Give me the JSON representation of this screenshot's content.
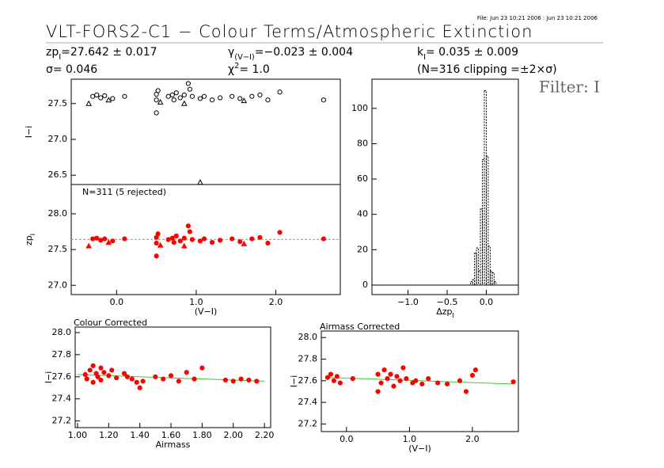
{
  "header": {
    "file": "File: Jun 23 10:21 2006 : Jun 23 10:21 2006",
    "title": "VLT-FORS2-C1 − Colour Terms/Atmospheric Extinction",
    "stats": [
      {
        "text": "zp",
        "sub": "I",
        "rest": "=27.642 ± 0.017"
      },
      {
        "text": "σ=  0.046"
      },
      {
        "text": "γ",
        "sub": "(V−I)",
        "rest": "=−0.023 ± 0.004"
      },
      {
        "text": "χ",
        "sup": "2",
        "rest": "=    1.0"
      },
      {
        "text": "k",
        "sub": "I",
        "rest": "=  0.035 ± 0.009"
      },
      {
        "text": "(N=316 clipping =±2×σ)"
      }
    ],
    "filter": "Filter: I"
  },
  "chart_data": [
    {
      "type": "scatter",
      "ylabel": "I−i",
      "xlim": [
        -0.57,
        2.81
      ],
      "ylim": [
        26.37,
        27.84
      ],
      "yticks": [
        26.5,
        {
          "value": 27,
          "label": "27.0"
        },
        27.5
      ],
      "series": [
        {
          "marker": "circle",
          "color": "#000000",
          "filled": false,
          "x": [
            -0.3,
            -0.25,
            -0.2,
            -0.15,
            -0.05,
            0.1,
            0.5,
            0.5,
            0.5,
            0.52,
            0.65,
            0.7,
            0.72,
            0.75,
            0.8,
            0.85,
            0.9,
            0.92,
            0.95,
            1.05,
            1.1,
            1.2,
            1.3,
            1.45,
            1.55,
            1.7,
            1.8,
            1.9,
            2.05,
            2.6
          ],
          "values": [
            27.6,
            27.62,
            27.58,
            27.61,
            27.57,
            27.6,
            27.37,
            27.63,
            27.55,
            27.68,
            27.6,
            27.62,
            27.55,
            27.65,
            27.58,
            27.62,
            27.78,
            27.7,
            27.6,
            27.57,
            27.6,
            27.55,
            27.58,
            27.6,
            27.57,
            27.6,
            27.62,
            27.55,
            27.66,
            27.55
          ]
        },
        {
          "marker": "triangle",
          "color": "#000000",
          "filled": false,
          "x": [
            -0.35,
            -0.1,
            0.55,
            0.85,
            1.05,
            1.6
          ],
          "values": [
            27.5,
            27.55,
            27.52,
            27.5,
            26.4,
            27.54
          ]
        }
      ]
    },
    {
      "type": "scatter",
      "annotation": "N=311 (5 rejected)",
      "ylabel": {
        "text": "zp",
        "sub": "I"
      },
      "xlabel": "(V−I)",
      "xlim": [
        -0.57,
        2.81
      ],
      "ylim": [
        26.87,
        28.41
      ],
      "xticks": [
        {
          "value": 0,
          "label": "0.0"
        },
        {
          "value": 1,
          "label": "1.0"
        },
        {
          "value": 2,
          "label": "2.0"
        }
      ],
      "yticks": [
        {
          "value": 27,
          "label": "27.0"
        },
        27.5,
        {
          "value": 28,
          "label": "28.0"
        }
      ],
      "reference_line": {
        "value": 27.642,
        "color": "#999999"
      },
      "series": [
        {
          "marker": "circle",
          "color": "#ff0000",
          "filled": true,
          "x": [
            -0.3,
            -0.25,
            -0.2,
            -0.15,
            -0.05,
            0.1,
            0.5,
            0.5,
            0.5,
            0.52,
            0.65,
            0.7,
            0.72,
            0.75,
            0.8,
            0.85,
            0.9,
            0.92,
            0.95,
            1.05,
            1.1,
            1.2,
            1.3,
            1.45,
            1.55,
            1.7,
            1.8,
            1.9,
            2.05,
            2.6
          ],
          "values": [
            27.65,
            27.66,
            27.63,
            27.65,
            27.62,
            27.65,
            27.41,
            27.67,
            27.59,
            27.72,
            27.64,
            27.66,
            27.6,
            27.69,
            27.62,
            27.66,
            27.83,
            27.75,
            27.64,
            27.62,
            27.65,
            27.6,
            27.63,
            27.65,
            27.61,
            27.65,
            27.67,
            27.59,
            27.74,
            27.65
          ]
        },
        {
          "marker": "triangle",
          "color": "#ff0000",
          "filled": true,
          "x": [
            -0.35,
            -0.1,
            0.55,
            0.85,
            1.6
          ],
          "values": [
            27.55,
            27.6,
            27.56,
            27.55,
            27.58
          ]
        }
      ]
    },
    {
      "type": "histogram",
      "xlabel": {
        "text": "Δzp",
        "sub": "I"
      },
      "xlim": [
        -1.46,
        0.41
      ],
      "ylim": [
        -5.4,
        116.5
      ],
      "xticks": [
        {
          "value": -1,
          "label": "−1.0"
        },
        {
          "value": -0.5,
          "label": "−0.5"
        },
        {
          "value": 0,
          "label": "0.0"
        }
      ],
      "yticks": [
        0,
        20,
        40,
        60,
        80,
        100
      ],
      "bins": [
        -0.2,
        -0.175,
        -0.15,
        -0.125,
        -0.1,
        -0.075,
        -0.05,
        -0.025,
        0,
        0.025,
        0.05,
        0.075,
        0.1,
        0.125,
        0.15
      ],
      "counts": [
        2,
        3,
        18,
        21,
        8,
        43,
        71,
        110,
        73,
        22,
        8,
        7,
        2,
        0
      ],
      "color": "#000000"
    },
    {
      "type": "scatter",
      "title": "Colour Corrected",
      "xlabel": "Airmass",
      "ylabel": "I−i",
      "xlim": [
        0.985,
        2.24
      ],
      "ylim": [
        27.14,
        28.05
      ],
      "xticks": [
        {
          "value": 1,
          "label": "1.00"
        },
        {
          "value": 1.2,
          "label": "1.20"
        },
        {
          "value": 1.4,
          "label": "1.40"
        },
        {
          "value": 1.6,
          "label": "1.60"
        },
        {
          "value": 1.8,
          "label": "1.80"
        },
        {
          "value": 2,
          "label": "2.00"
        },
        {
          "value": 2.2,
          "label": "2.20"
        }
      ],
      "yticks": [
        27.2,
        27.4,
        27.6,
        27.8,
        {
          "value": 28,
          "label": "28.0"
        }
      ],
      "fit": {
        "x": [
          1.0,
          2.2
        ],
        "values": [
          27.62,
          27.56
        ],
        "color": "#33cc33"
      },
      "series": [
        {
          "marker": "circle",
          "color": "#ff0000",
          "filled": true,
          "x": [
            1.05,
            1.06,
            1.08,
            1.1,
            1.1,
            1.12,
            1.13,
            1.15,
            1.15,
            1.17,
            1.2,
            1.22,
            1.25,
            1.3,
            1.32,
            1.35,
            1.38,
            1.4,
            1.42,
            1.5,
            1.55,
            1.6,
            1.65,
            1.7,
            1.75,
            1.8,
            1.95,
            2.0,
            2.05,
            2.1,
            2.15
          ],
          "values": [
            27.62,
            27.58,
            27.66,
            27.7,
            27.55,
            27.63,
            27.6,
            27.68,
            27.57,
            27.64,
            27.61,
            27.66,
            27.59,
            27.63,
            27.6,
            27.58,
            27.55,
            27.5,
            27.56,
            27.6,
            27.58,
            27.61,
            27.56,
            27.64,
            27.58,
            27.68,
            27.57,
            27.56,
            27.58,
            27.57,
            27.56
          ]
        }
      ]
    },
    {
      "type": "scatter",
      "title": "Airmass Corrected",
      "xlabel": "(V−I)",
      "ylabel": "I−i",
      "xlim": [
        -0.4,
        2.73
      ],
      "ylim": [
        27.13,
        28.06
      ],
      "xticks": [
        {
          "value": 0,
          "label": "0.0"
        },
        {
          "value": 1,
          "label": "1.0"
        },
        {
          "value": 2,
          "label": "2.0"
        }
      ],
      "yticks": [
        27.2,
        27.4,
        27.6,
        27.8,
        {
          "value": 28,
          "label": "28.0"
        }
      ],
      "fit": {
        "x": [
          -0.3,
          2.65
        ],
        "values": [
          27.63,
          27.57
        ],
        "color": "#33cc33"
      },
      "series": [
        {
          "marker": "circle",
          "color": "#ff0000",
          "filled": true,
          "x": [
            -0.3,
            -0.25,
            -0.2,
            -0.15,
            -0.1,
            0.1,
            0.5,
            0.5,
            0.55,
            0.6,
            0.65,
            0.7,
            0.75,
            0.8,
            0.85,
            0.9,
            0.95,
            1.05,
            1.1,
            1.2,
            1.3,
            1.45,
            1.6,
            1.8,
            1.9,
            2.0,
            2.05,
            2.65
          ],
          "values": [
            27.63,
            27.66,
            27.6,
            27.64,
            27.58,
            27.62,
            27.5,
            27.66,
            27.58,
            27.7,
            27.62,
            27.66,
            27.55,
            27.64,
            27.6,
            27.72,
            27.62,
            27.58,
            27.6,
            27.57,
            27.62,
            27.58,
            27.57,
            27.6,
            27.5,
            27.65,
            27.7,
            27.59
          ]
        }
      ]
    }
  ]
}
